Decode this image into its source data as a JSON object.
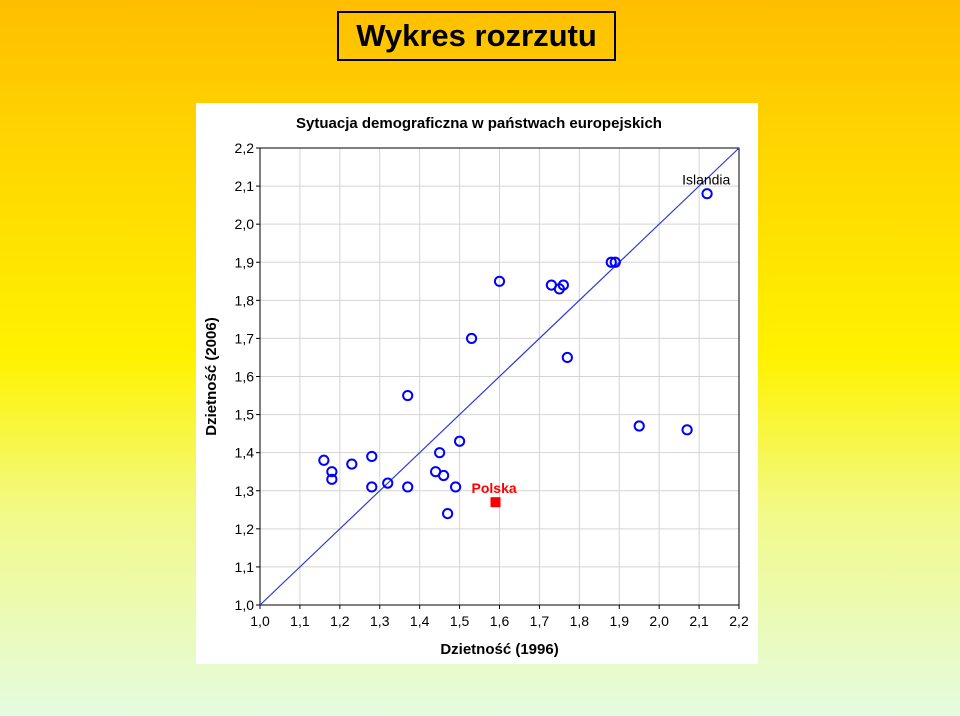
{
  "slide": {
    "title": "Wykres rozrzutu"
  },
  "chart_data": {
    "type": "scatter",
    "title": "Sytuacja demograficzna w państwach europejskich",
    "xlabel": "Dzietność (1996)",
    "ylabel": "Dzietność (2006)",
    "xlim": [
      1.0,
      2.2
    ],
    "ylim": [
      1.0,
      2.2
    ],
    "x_ticks": [
      "1,0",
      "1,1",
      "1,2",
      "1,3",
      "1,4",
      "1,5",
      "1,6",
      "1,7",
      "1,8",
      "1,9",
      "2,0",
      "2,1",
      "2,2"
    ],
    "y_ticks": [
      "1,0",
      "1,1",
      "1,2",
      "1,3",
      "1,4",
      "1,5",
      "1,6",
      "1,7",
      "1,8",
      "1,9",
      "2,0",
      "2,1",
      "2,2"
    ],
    "grid": true,
    "reference_line": {
      "from": [
        1.0,
        1.0
      ],
      "to": [
        2.2,
        2.2
      ]
    },
    "points": [
      {
        "x": 1.16,
        "y": 1.38
      },
      {
        "x": 1.18,
        "y": 1.35
      },
      {
        "x": 1.18,
        "y": 1.33
      },
      {
        "x": 1.23,
        "y": 1.37
      },
      {
        "x": 1.28,
        "y": 1.39
      },
      {
        "x": 1.28,
        "y": 1.31
      },
      {
        "x": 1.32,
        "y": 1.32
      },
      {
        "x": 1.37,
        "y": 1.31
      },
      {
        "x": 1.37,
        "y": 1.55
      },
      {
        "x": 1.44,
        "y": 1.35
      },
      {
        "x": 1.45,
        "y": 1.4
      },
      {
        "x": 1.46,
        "y": 1.34
      },
      {
        "x": 1.47,
        "y": 1.24
      },
      {
        "x": 1.49,
        "y": 1.31
      },
      {
        "x": 1.5,
        "y": 1.43
      },
      {
        "x": 1.53,
        "y": 1.7
      },
      {
        "x": 1.6,
        "y": 1.85
      },
      {
        "x": 1.73,
        "y": 1.84
      },
      {
        "x": 1.75,
        "y": 1.83
      },
      {
        "x": 1.76,
        "y": 1.84
      },
      {
        "x": 1.77,
        "y": 1.65
      },
      {
        "x": 1.88,
        "y": 1.9
      },
      {
        "x": 1.89,
        "y": 1.9
      },
      {
        "x": 1.95,
        "y": 1.47
      },
      {
        "x": 2.07,
        "y": 1.46
      },
      {
        "x": 2.12,
        "y": 2.08
      }
    ],
    "highlight": {
      "label": "Polska",
      "x": 1.59,
      "y": 1.27,
      "color": "#ff0000"
    },
    "annotations": [
      {
        "text": "Islandia",
        "x": 2.12,
        "y": 2.08
      }
    ],
    "marker_color": "#0000ff",
    "line_color": "#2a3bd8"
  }
}
